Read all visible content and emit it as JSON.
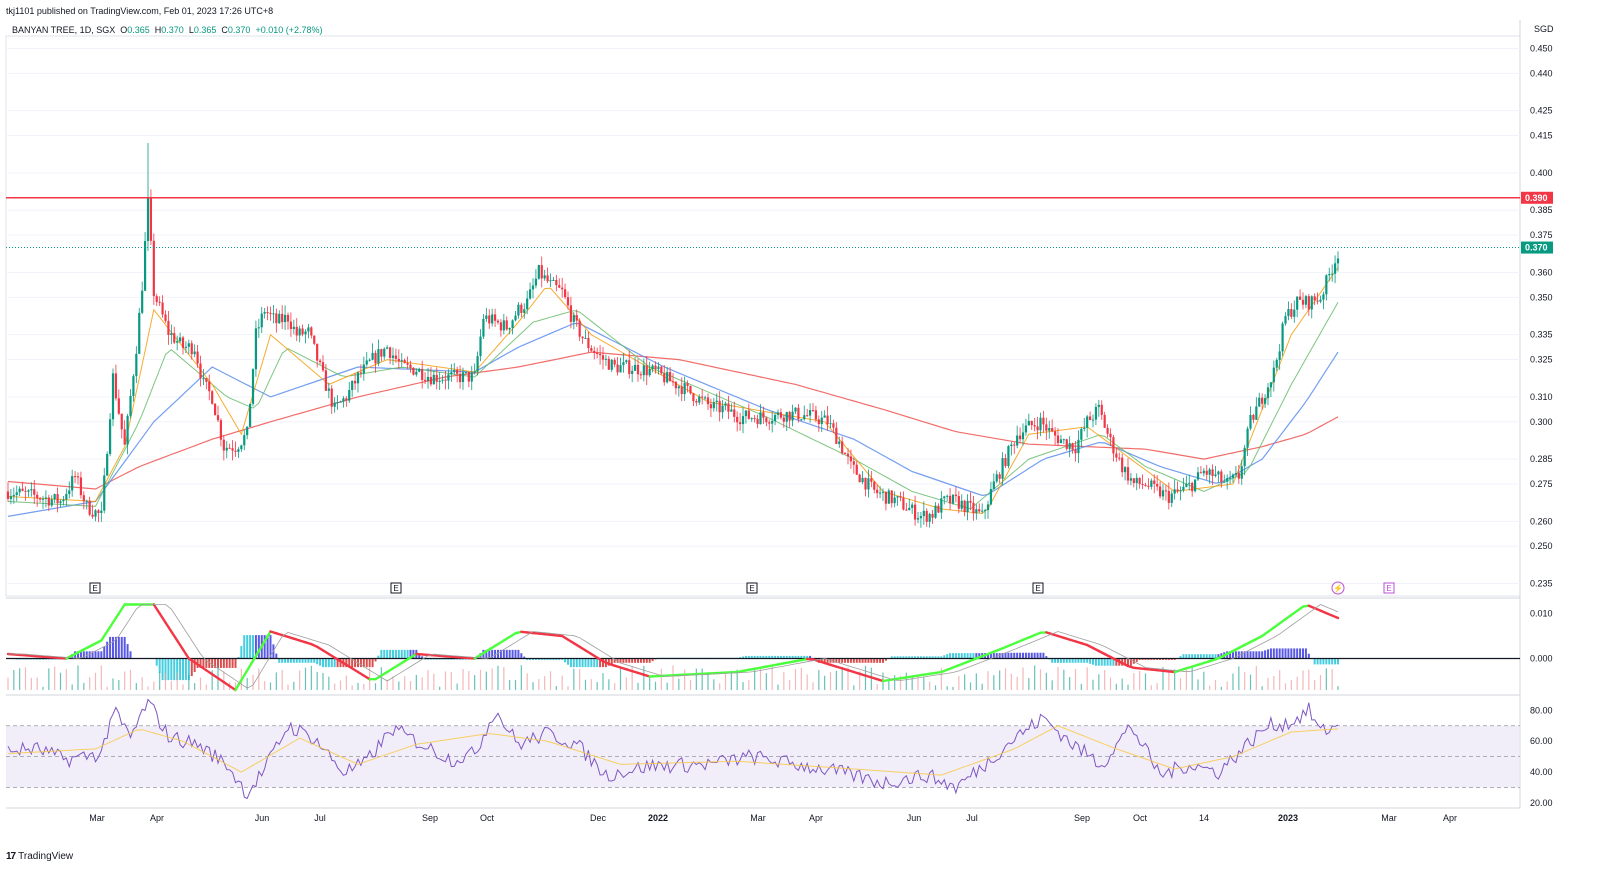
{
  "header": {
    "published": "tkj1101 published on TradingView.com, Feb 01, 2023 17:26 UTC+8",
    "symbol": "BANYAN TREE, 1D, SGX",
    "ohlc": {
      "o_label": "O",
      "o": "0.365",
      "h_label": "H",
      "h": "0.370",
      "l_label": "L",
      "l": "0.365",
      "c_label": "C",
      "c": "0.370",
      "change": "+0.010 (+2.78%)"
    }
  },
  "currency": "SGD",
  "footer": {
    "brand": "TradingView",
    "brand_mark": "17"
  },
  "colors": {
    "up": "#089981",
    "down": "#f23645",
    "resistance": "#f23645",
    "ema_fast": "#f59e0b",
    "ema_mid": "#66bb6a",
    "ema_slow": "#5b8def",
    "ema_long": "#ef5350",
    "rsi": "#7e57c2",
    "rsi_ma": "#f7c948",
    "rsi_band": "#ede7f6"
  },
  "chart_data": [
    {
      "type": "candlestick",
      "name": "price",
      "yticks": [
        "0.450",
        "0.440",
        "0.425",
        "0.415",
        "0.400",
        "0.385",
        "0.375",
        "0.360",
        "0.350",
        "0.335",
        "0.325",
        "0.310",
        "0.300",
        "0.285",
        "0.275",
        "0.260",
        "0.250",
        "0.235"
      ],
      "ylim": [
        0.23,
        0.455
      ],
      "resistance": {
        "value": 0.39,
        "label": "0.390"
      },
      "last_price": {
        "value": 0.37,
        "label": "0.370"
      },
      "events": [
        "E",
        "E",
        "E",
        "E",
        "⚡",
        "E"
      ],
      "xticks": [
        "Mar",
        "Apr",
        "Jun",
        "Jul",
        "Sep",
        "Oct",
        "Dec",
        "2022",
        "Mar",
        "Apr",
        "Jun",
        "Jul",
        "Sep",
        "Oct",
        "14",
        "2023",
        "Mar",
        "Apr"
      ],
      "close_path": [
        [
          0,
          0.272
        ],
        [
          10,
          0.27
        ],
        [
          18,
          0.268
        ],
        [
          23,
          0.278
        ],
        [
          27,
          0.266
        ],
        [
          32,
          0.262
        ],
        [
          36,
          0.318
        ],
        [
          40,
          0.29
        ],
        [
          44,
          0.33
        ],
        [
          46,
          0.355
        ],
        [
          48,
          0.388
        ],
        [
          50,
          0.352
        ],
        [
          55,
          0.336
        ],
        [
          60,
          0.33
        ],
        [
          64,
          0.33
        ],
        [
          67,
          0.315
        ],
        [
          70,
          0.31
        ],
        [
          74,
          0.29
        ],
        [
          78,
          0.29
        ],
        [
          82,
          0.295
        ],
        [
          85,
          0.335
        ],
        [
          88,
          0.345
        ],
        [
          92,
          0.34
        ],
        [
          96,
          0.342
        ],
        [
          99,
          0.335
        ],
        [
          103,
          0.336
        ],
        [
          108,
          0.318
        ],
        [
          112,
          0.305
        ],
        [
          116,
          0.31
        ],
        [
          120,
          0.318
        ],
        [
          125,
          0.325
        ],
        [
          130,
          0.33
        ],
        [
          135,
          0.322
        ],
        [
          140,
          0.321
        ],
        [
          145,
          0.318
        ],
        [
          150,
          0.318
        ],
        [
          155,
          0.318
        ],
        [
          160,
          0.318
        ],
        [
          163,
          0.342
        ],
        [
          167,
          0.34
        ],
        [
          171,
          0.338
        ],
        [
          175,
          0.345
        ],
        [
          178,
          0.348
        ],
        [
          182,
          0.36
        ],
        [
          186,
          0.355
        ],
        [
          190,
          0.352
        ],
        [
          194,
          0.34
        ],
        [
          198,
          0.332
        ],
        [
          203,
          0.326
        ],
        [
          208,
          0.322
        ],
        [
          213,
          0.322
        ],
        [
          218,
          0.321
        ],
        [
          222,
          0.32
        ],
        [
          226,
          0.317
        ],
        [
          231,
          0.314
        ],
        [
          236,
          0.31
        ],
        [
          241,
          0.306
        ],
        [
          246,
          0.305
        ],
        [
          251,
          0.302
        ],
        [
          256,
          0.302
        ],
        [
          261,
          0.302
        ],
        [
          266,
          0.303
        ],
        [
          271,
          0.303
        ],
        [
          276,
          0.302
        ],
        [
          281,
          0.3
        ],
        [
          285,
          0.292
        ],
        [
          289,
          0.282
        ],
        [
          293,
          0.277
        ],
        [
          297,
          0.272
        ],
        [
          301,
          0.27
        ],
        [
          305,
          0.268
        ],
        [
          309,
          0.265
        ],
        [
          313,
          0.262
        ],
        [
          317,
          0.263
        ],
        [
          321,
          0.268
        ],
        [
          325,
          0.268
        ],
        [
          330,
          0.265
        ],
        [
          334,
          0.262
        ],
        [
          338,
          0.275
        ],
        [
          342,
          0.285
        ],
        [
          346,
          0.295
        ],
        [
          350,
          0.298
        ],
        [
          354,
          0.3
        ],
        [
          358,
          0.295
        ],
        [
          362,
          0.292
        ],
        [
          366,
          0.29
        ],
        [
          370,
          0.3
        ],
        [
          374,
          0.305
        ],
        [
          378,
          0.292
        ],
        [
          382,
          0.282
        ],
        [
          386,
          0.275
        ],
        [
          390,
          0.275
        ],
        [
          394,
          0.272
        ],
        [
          398,
          0.27
        ],
        [
          402,
          0.272
        ],
        [
          406,
          0.275
        ],
        [
          410,
          0.28
        ],
        [
          414,
          0.278
        ],
        [
          418,
          0.275
        ],
        [
          422,
          0.278
        ],
        [
          426,
          0.3
        ],
        [
          430,
          0.31
        ],
        [
          434,
          0.32
        ],
        [
          438,
          0.342
        ],
        [
          442,
          0.348
        ],
        [
          446,
          0.348
        ],
        [
          450,
          0.35
        ],
        [
          454,
          0.362
        ],
        [
          456,
          0.368
        ]
      ],
      "ema_fast_path": [
        [
          0,
          0.27
        ],
        [
          30,
          0.268
        ],
        [
          40,
          0.29
        ],
        [
          50,
          0.345
        ],
        [
          70,
          0.315
        ],
        [
          80,
          0.295
        ],
        [
          90,
          0.335
        ],
        [
          110,
          0.315
        ],
        [
          130,
          0.325
        ],
        [
          160,
          0.32
        ],
        [
          175,
          0.34
        ],
        [
          185,
          0.355
        ],
        [
          200,
          0.335
        ],
        [
          240,
          0.308
        ],
        [
          280,
          0.3
        ],
        [
          300,
          0.272
        ],
        [
          320,
          0.265
        ],
        [
          335,
          0.263
        ],
        [
          350,
          0.295
        ],
        [
          370,
          0.298
        ],
        [
          385,
          0.285
        ],
        [
          400,
          0.272
        ],
        [
          420,
          0.275
        ],
        [
          440,
          0.335
        ],
        [
          456,
          0.362
        ]
      ],
      "ema_mid_path": [
        [
          0,
          0.268
        ],
        [
          30,
          0.266
        ],
        [
          45,
          0.3
        ],
        [
          55,
          0.33
        ],
        [
          75,
          0.31
        ],
        [
          85,
          0.305
        ],
        [
          95,
          0.33
        ],
        [
          115,
          0.318
        ],
        [
          135,
          0.322
        ],
        [
          160,
          0.318
        ],
        [
          180,
          0.34
        ],
        [
          195,
          0.345
        ],
        [
          220,
          0.322
        ],
        [
          260,
          0.302
        ],
        [
          290,
          0.285
        ],
        [
          310,
          0.272
        ],
        [
          330,
          0.265
        ],
        [
          350,
          0.285
        ],
        [
          375,
          0.295
        ],
        [
          390,
          0.282
        ],
        [
          410,
          0.272
        ],
        [
          425,
          0.28
        ],
        [
          440,
          0.315
        ],
        [
          456,
          0.348
        ]
      ],
      "ema_slow_path": [
        [
          0,
          0.262
        ],
        [
          30,
          0.268
        ],
        [
          50,
          0.3
        ],
        [
          70,
          0.322
        ],
        [
          90,
          0.31
        ],
        [
          120,
          0.322
        ],
        [
          160,
          0.32
        ],
        [
          175,
          0.33
        ],
        [
          195,
          0.34
        ],
        [
          225,
          0.322
        ],
        [
          260,
          0.305
        ],
        [
          290,
          0.293
        ],
        [
          310,
          0.28
        ],
        [
          335,
          0.27
        ],
        [
          355,
          0.285
        ],
        [
          375,
          0.292
        ],
        [
          395,
          0.282
        ],
        [
          415,
          0.275
        ],
        [
          430,
          0.285
        ],
        [
          445,
          0.308
        ],
        [
          456,
          0.328
        ]
      ],
      "ema_long_path": [
        [
          0,
          0.276
        ],
        [
          30,
          0.273
        ],
        [
          45,
          0.282
        ],
        [
          70,
          0.293
        ],
        [
          90,
          0.3
        ],
        [
          120,
          0.31
        ],
        [
          150,
          0.318
        ],
        [
          175,
          0.322
        ],
        [
          200,
          0.328
        ],
        [
          230,
          0.325
        ],
        [
          270,
          0.315
        ],
        [
          300,
          0.305
        ],
        [
          325,
          0.296
        ],
        [
          350,
          0.291
        ],
        [
          390,
          0.289
        ],
        [
          410,
          0.285
        ],
        [
          430,
          0.29
        ],
        [
          445,
          0.295
        ],
        [
          456,
          0.302
        ]
      ]
    },
    {
      "type": "histogram_oscillator",
      "name": "momentum",
      "yticks": [
        "0.010",
        "0.000"
      ],
      "ylim": [
        -0.007,
        0.013
      ],
      "signal_path": [
        [
          0,
          0.001
        ],
        [
          20,
          0.0
        ],
        [
          32,
          0.004
        ],
        [
          40,
          0.012
        ],
        [
          50,
          0.012
        ],
        [
          62,
          0.0
        ],
        [
          78,
          -0.007
        ],
        [
          90,
          0.006
        ],
        [
          105,
          0.003
        ],
        [
          125,
          -0.005
        ],
        [
          140,
          0.001
        ],
        [
          160,
          0.0
        ],
        [
          175,
          0.006
        ],
        [
          190,
          0.005
        ],
        [
          205,
          -0.001
        ],
        [
          220,
          -0.004
        ],
        [
          250,
          -0.003
        ],
        [
          275,
          0.0
        ],
        [
          300,
          -0.005
        ],
        [
          320,
          -0.003
        ],
        [
          340,
          0.002
        ],
        [
          355,
          0.006
        ],
        [
          370,
          0.003
        ],
        [
          385,
          -0.002
        ],
        [
          400,
          -0.003
        ],
        [
          415,
          0.0
        ],
        [
          430,
          0.005
        ],
        [
          445,
          0.012
        ],
        [
          456,
          0.009
        ]
      ]
    },
    {
      "type": "line",
      "name": "rsi",
      "yticks": [
        "80.00",
        "60.00",
        "40.00",
        "20.00"
      ],
      "ylim": [
        18,
        88
      ],
      "band": [
        30,
        70
      ],
      "mid": 50,
      "rsi_path": [
        [
          0,
          54
        ],
        [
          10,
          55
        ],
        [
          20,
          48
        ],
        [
          32,
          52
        ],
        [
          36,
          80
        ],
        [
          42,
          62
        ],
        [
          48,
          86
        ],
        [
          55,
          63
        ],
        [
          65,
          58
        ],
        [
          75,
          45
        ],
        [
          82,
          26
        ],
        [
          88,
          42
        ],
        [
          96,
          70
        ],
        [
          105,
          62
        ],
        [
          115,
          40
        ],
        [
          122,
          45
        ],
        [
          132,
          68
        ],
        [
          142,
          58
        ],
        [
          152,
          48
        ],
        [
          160,
          52
        ],
        [
          167,
          80
        ],
        [
          175,
          58
        ],
        [
          185,
          65
        ],
        [
          195,
          58
        ],
        [
          205,
          38
        ],
        [
          220,
          44
        ],
        [
          240,
          45
        ],
        [
          255,
          50
        ],
        [
          270,
          45
        ],
        [
          285,
          40
        ],
        [
          300,
          33
        ],
        [
          315,
          38
        ],
        [
          325,
          30
        ],
        [
          335,
          45
        ],
        [
          345,
          62
        ],
        [
          355,
          75
        ],
        [
          365,
          58
        ],
        [
          375,
          45
        ],
        [
          385,
          70
        ],
        [
          395,
          38
        ],
        [
          405,
          45
        ],
        [
          415,
          40
        ],
        [
          425,
          58
        ],
        [
          432,
          70
        ],
        [
          440,
          72
        ],
        [
          446,
          80
        ],
        [
          450,
          66
        ],
        [
          456,
          70
        ]
      ],
      "rsi_ma_path": [
        [
          0,
          52
        ],
        [
          30,
          55
        ],
        [
          45,
          68
        ],
        [
          60,
          60
        ],
        [
          80,
          40
        ],
        [
          100,
          62
        ],
        [
          120,
          45
        ],
        [
          140,
          58
        ],
        [
          165,
          65
        ],
        [
          185,
          60
        ],
        [
          210,
          45
        ],
        [
          250,
          47
        ],
        [
          290,
          42
        ],
        [
          320,
          38
        ],
        [
          345,
          55
        ],
        [
          360,
          70
        ],
        [
          380,
          55
        ],
        [
          400,
          42
        ],
        [
          420,
          50
        ],
        [
          440,
          66
        ],
        [
          456,
          68
        ]
      ]
    }
  ]
}
